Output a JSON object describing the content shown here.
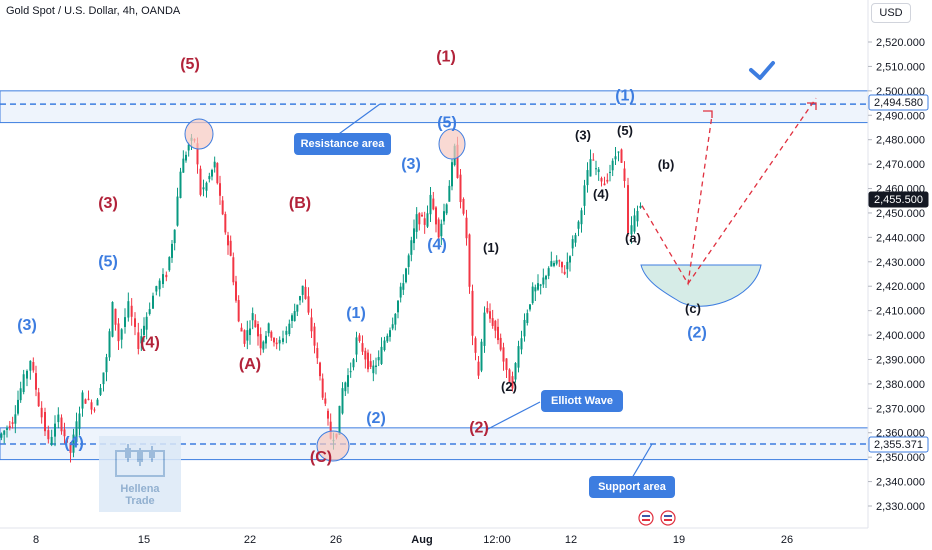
{
  "header": {
    "title": "Gold Spot / U.S. Dollar, 4h, OANDA",
    "currency": "USD"
  },
  "watermark": {
    "line1": "Hellena",
    "line2": "Trade"
  },
  "callouts": {
    "resistance": "Resistance area",
    "elliott": "Elliott Wave",
    "support": "Support area"
  },
  "colors": {
    "up": "#089981",
    "down": "#f23645",
    "red_label": "#b2233a",
    "blue_label": "#3d7de0",
    "dark_label": "#131722",
    "zone": "#cfe0f7",
    "zone_border": "#3d7de0",
    "projection": "#e0303f",
    "ellipse_fill": "#f6c9c0",
    "bowl": "#d6ece7",
    "check": "#3d7de0"
  },
  "icons": {
    "checkmark": "checkmark-icon",
    "flags": "us-flag-icon"
  },
  "chart_data": {
    "type": "candlestick",
    "symbol": "XAUUSD",
    "timeframe": "4h",
    "ylim": [
      2322,
      2532
    ],
    "y_ticks": [
      2330,
      2340,
      2350,
      2360,
      2370,
      2380,
      2390,
      2400,
      2410,
      2420,
      2430,
      2440,
      2450,
      2460,
      2470,
      2480,
      2490,
      2500,
      2510,
      2520
    ],
    "x_ticks": [
      "8",
      "15",
      "22",
      "26",
      "Aug",
      "12:00",
      "12",
      "19",
      "26"
    ],
    "price_tags": [
      {
        "value": "2,494.580",
        "style": "outline"
      },
      {
        "value": "2,455.500",
        "style": "dark"
      },
      {
        "value": "2,355.371",
        "style": "outline"
      }
    ],
    "resistance_zone": [
      2487,
      2500
    ],
    "resistance_level": 2494.58,
    "support_zone": [
      2349,
      2362
    ],
    "support_level": 2355.371,
    "price_path": [
      [
        0,
        2358
      ],
      [
        14,
        2365
      ],
      [
        22,
        2378
      ],
      [
        32,
        2390
      ],
      [
        40,
        2372
      ],
      [
        50,
        2356
      ],
      [
        60,
        2366
      ],
      [
        72,
        2352
      ],
      [
        84,
        2375
      ],
      [
        96,
        2370
      ],
      [
        108,
        2390
      ],
      [
        114,
        2412
      ],
      [
        120,
        2398
      ],
      [
        130,
        2412
      ],
      [
        140,
        2396
      ],
      [
        148,
        2408
      ],
      [
        158,
        2420
      ],
      [
        168,
        2425
      ],
      [
        176,
        2445
      ],
      [
        182,
        2468
      ],
      [
        190,
        2478
      ],
      [
        196,
        2480
      ],
      [
        202,
        2458
      ],
      [
        208,
        2462
      ],
      [
        216,
        2470
      ],
      [
        224,
        2448
      ],
      [
        232,
        2432
      ],
      [
        240,
        2405
      ],
      [
        246,
        2398
      ],
      [
        254,
        2408
      ],
      [
        262,
        2396
      ],
      [
        270,
        2403
      ],
      [
        278,
        2395
      ],
      [
        288,
        2402
      ],
      [
        296,
        2410
      ],
      [
        304,
        2420
      ],
      [
        310,
        2408
      ],
      [
        316,
        2396
      ],
      [
        324,
        2376
      ],
      [
        332,
        2358
      ],
      [
        338,
        2360
      ],
      [
        344,
        2378
      ],
      [
        352,
        2386
      ],
      [
        358,
        2398
      ],
      [
        364,
        2394
      ],
      [
        372,
        2385
      ],
      [
        380,
        2390
      ],
      [
        386,
        2398
      ],
      [
        394,
        2406
      ],
      [
        402,
        2418
      ],
      [
        410,
        2432
      ],
      [
        418,
        2448
      ],
      [
        426,
        2446
      ],
      [
        432,
        2456
      ],
      [
        440,
        2442
      ],
      [
        448,
        2455
      ],
      [
        456,
        2476
      ],
      [
        462,
        2456
      ],
      [
        468,
        2440
      ],
      [
        474,
        2398
      ],
      [
        480,
        2384
      ],
      [
        486,
        2410
      ],
      [
        494,
        2405
      ],
      [
        502,
        2395
      ],
      [
        508,
        2384
      ],
      [
        514,
        2380
      ],
      [
        520,
        2395
      ],
      [
        526,
        2406
      ],
      [
        534,
        2418
      ],
      [
        542,
        2420
      ],
      [
        550,
        2428
      ],
      [
        558,
        2430
      ],
      [
        566,
        2426
      ],
      [
        574,
        2438
      ],
      [
        580,
        2446
      ],
      [
        586,
        2460
      ],
      [
        592,
        2472
      ],
      [
        600,
        2466
      ],
      [
        606,
        2462
      ],
      [
        614,
        2470
      ],
      [
        620,
        2477
      ],
      [
        626,
        2462
      ],
      [
        630,
        2440
      ],
      [
        636,
        2448
      ],
      [
        642,
        2453
      ]
    ],
    "projection": [
      {
        "from": [
          642,
          2453
        ],
        "via": [
          688,
          2421
        ],
        "to": [
          712,
          2490
        ]
      },
      {
        "from": [
          688,
          2421
        ],
        "to": [
          816,
          2497
        ]
      }
    ],
    "wave_labels": [
      {
        "text": "(5)",
        "x": 190,
        "y": 2509,
        "color": "red"
      },
      {
        "text": "(3)",
        "x": 108,
        "y": 2452,
        "color": "red"
      },
      {
        "text": "(5)",
        "x": 108,
        "y": 2428,
        "color": "blue"
      },
      {
        "text": "(4)",
        "x": 150,
        "y": 2395,
        "color": "red"
      },
      {
        "text": "(3)",
        "x": 27,
        "y": 2402,
        "color": "blue"
      },
      {
        "text": "(4)",
        "x": 74,
        "y": 2354,
        "color": "blue"
      },
      {
        "text": "(A)",
        "x": 250,
        "y": 2386,
        "color": "red"
      },
      {
        "text": "(B)",
        "x": 300,
        "y": 2452,
        "color": "red"
      },
      {
        "text": "(C)",
        "x": 321,
        "y": 2348,
        "color": "red"
      },
      {
        "text": "(1)",
        "x": 356,
        "y": 2407,
        "color": "blue"
      },
      {
        "text": "(2)",
        "x": 376,
        "y": 2364,
        "color": "blue"
      },
      {
        "text": "(3)",
        "x": 411,
        "y": 2468,
        "color": "blue"
      },
      {
        "text": "(4)",
        "x": 437,
        "y": 2435,
        "color": "blue"
      },
      {
        "text": "(5)",
        "x": 447,
        "y": 2485,
        "color": "blue"
      },
      {
        "text": "(1)",
        "x": 446,
        "y": 2512,
        "color": "red"
      },
      {
        "text": "(2)",
        "x": 479,
        "y": 2360,
        "color": "red"
      },
      {
        "text": "(1)",
        "x": 491,
        "y": 2434,
        "color": "dark"
      },
      {
        "text": "(2)",
        "x": 509,
        "y": 2377,
        "color": "dark"
      },
      {
        "text": "(3)",
        "x": 583,
        "y": 2480,
        "color": "dark"
      },
      {
        "text": "(4)",
        "x": 601,
        "y": 2456,
        "color": "dark"
      },
      {
        "text": "(5)",
        "x": 625,
        "y": 2482,
        "color": "dark"
      },
      {
        "text": "(a)",
        "x": 633,
        "y": 2438,
        "color": "dark"
      },
      {
        "text": "(b)",
        "x": 666,
        "y": 2468,
        "color": "dark"
      },
      {
        "text": "(c)",
        "x": 693,
        "y": 2409,
        "color": "dark"
      },
      {
        "text": "(1)",
        "x": 625,
        "y": 2496,
        "color": "blue"
      },
      {
        "text": "(2)",
        "x": 697,
        "y": 2399,
        "color": "blue"
      }
    ]
  }
}
